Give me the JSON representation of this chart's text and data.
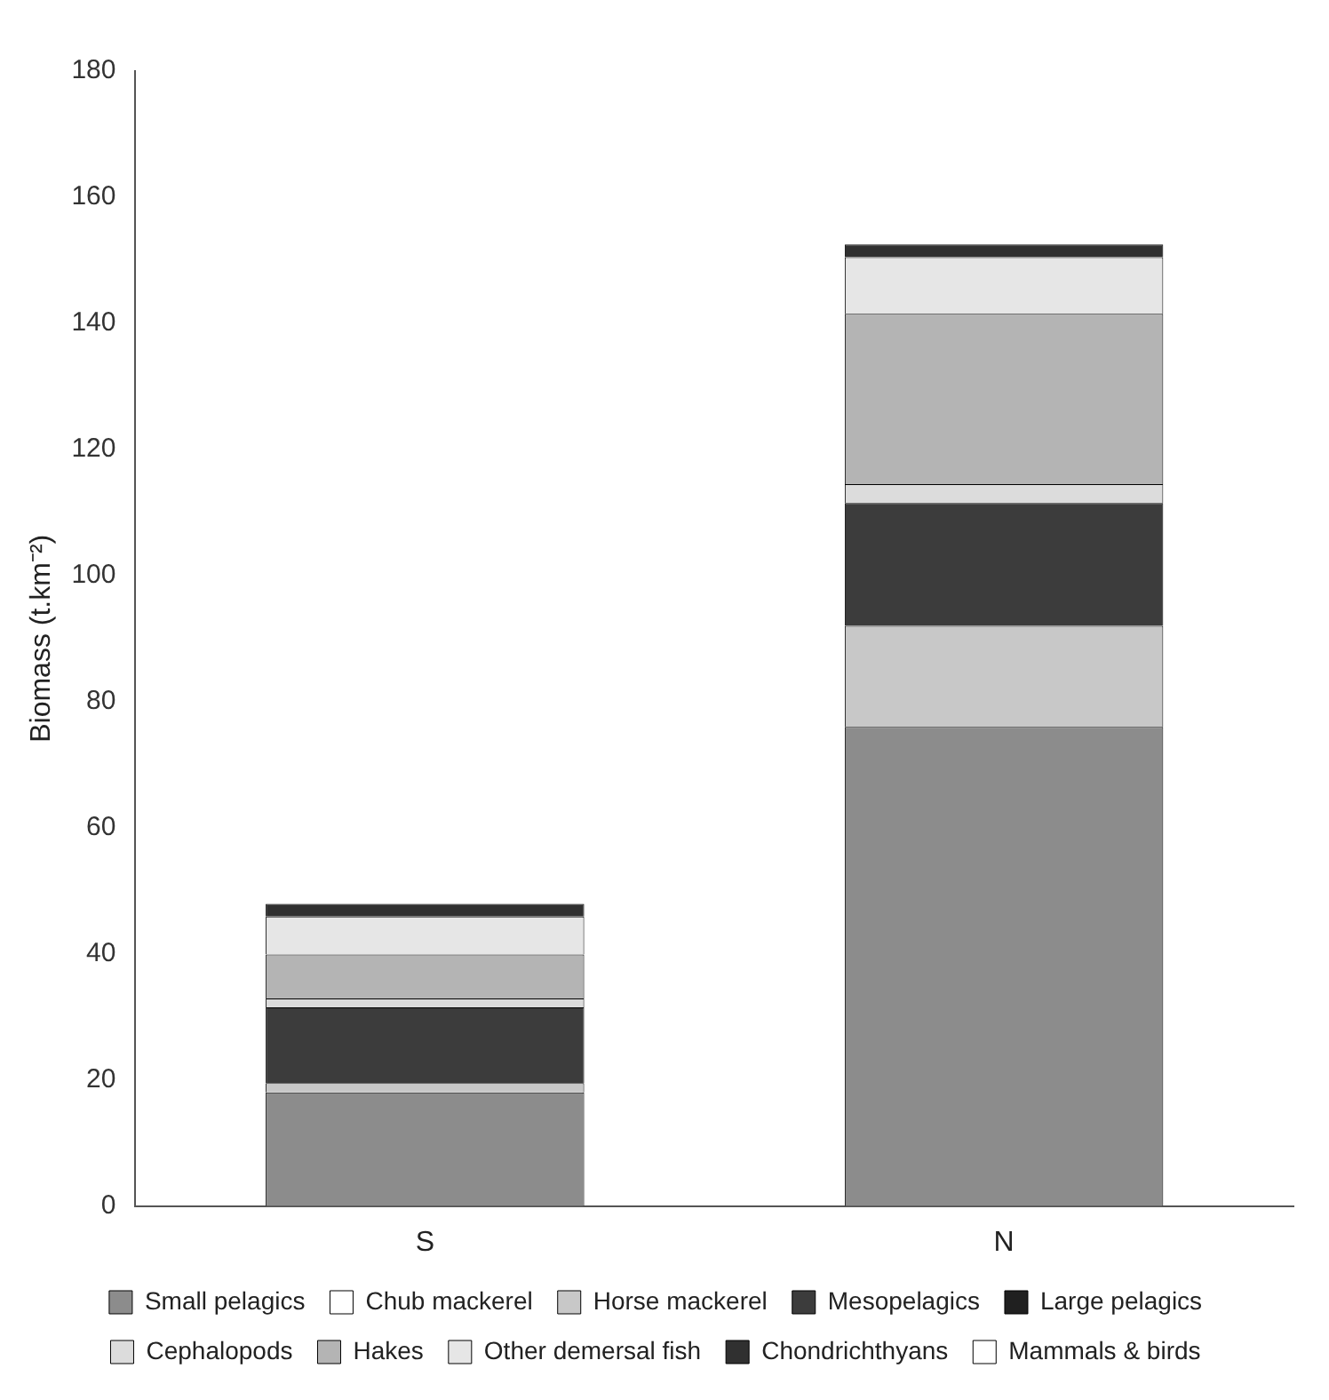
{
  "chart_data": {
    "type": "bar",
    "stacked": true,
    "ylabel": "Biomass (t.km⁻²)",
    "categories": [
      "S",
      "N"
    ],
    "ylim": [
      0,
      180
    ],
    "yticks": [
      0,
      20,
      40,
      60,
      80,
      100,
      120,
      140,
      160,
      180
    ],
    "grid": false,
    "legend": "bottom",
    "series": [
      {
        "name": "Small pelagics",
        "color": "#8c8c8c",
        "values": [
          18,
          76
        ]
      },
      {
        "name": "Chub mackerel",
        "color": "#ffffff",
        "values": [
          0,
          0
        ]
      },
      {
        "name": "Horse mackerel",
        "color": "#c8c8c8",
        "values": [
          1.5,
          16
        ]
      },
      {
        "name": "Mesopelagics",
        "color": "#3c3c3c",
        "values": [
          12,
          19.5
        ]
      },
      {
        "name": "Large pelagics",
        "color": "#202020",
        "values": [
          0,
          0
        ]
      },
      {
        "name": "Cephalopods",
        "color": "#dcdcdc",
        "values": [
          1.4,
          3
        ]
      },
      {
        "name": "Hakes",
        "color": "#b4b4b4",
        "values": [
          7,
          27
        ]
      },
      {
        "name": "Other demersal fish",
        "color": "#e6e6e6",
        "values": [
          6,
          9
        ]
      },
      {
        "name": "Chondrichthyans",
        "color": "#303030",
        "values": [
          2,
          2
        ]
      },
      {
        "name": "Mammals & birds",
        "color": "#ffffff",
        "values": [
          0,
          0
        ]
      }
    ]
  }
}
